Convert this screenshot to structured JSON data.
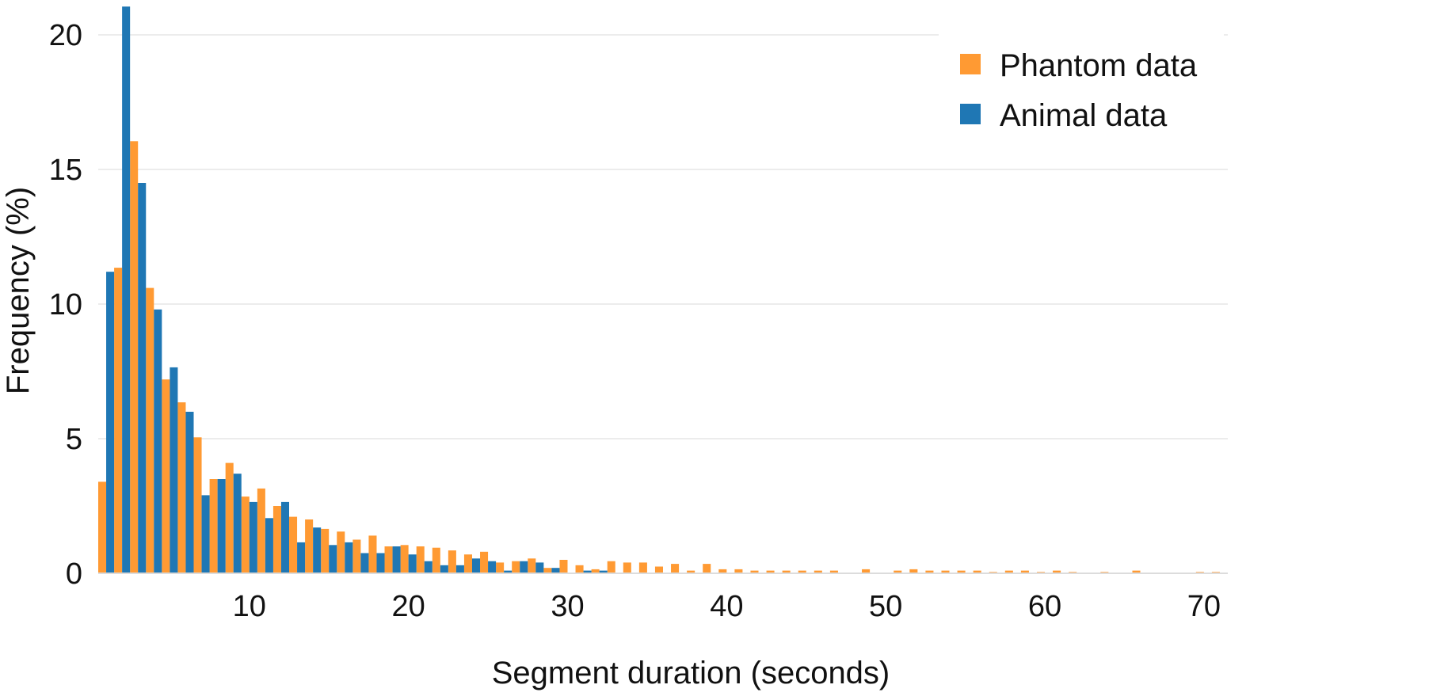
{
  "chart_data": {
    "type": "bar",
    "title": "",
    "xlabel": "Segment duration (seconds)",
    "ylabel": "Frequency (%)",
    "xlim": [
      0.5,
      71.5
    ],
    "ylim": [
      0,
      21
    ],
    "xticks": [
      10,
      20,
      30,
      40,
      50,
      60,
      70
    ],
    "yticks": [
      0,
      5,
      10,
      15,
      20
    ],
    "grid": "horizontal",
    "legend_position": "top-right",
    "colors": {
      "Phantom data": "#ff9a33",
      "Animal data": "#1f77b4",
      "grid": "#e6e6e6"
    },
    "x": [
      1,
      2,
      3,
      4,
      5,
      6,
      7,
      8,
      9,
      10,
      11,
      12,
      13,
      14,
      15,
      16,
      17,
      18,
      19,
      20,
      21,
      22,
      23,
      24,
      25,
      26,
      27,
      28,
      29,
      30,
      31,
      32,
      33,
      34,
      35,
      36,
      37,
      38,
      39,
      40,
      41,
      42,
      43,
      44,
      45,
      46,
      47,
      48,
      49,
      50,
      51,
      52,
      53,
      54,
      55,
      56,
      57,
      58,
      59,
      60,
      61,
      62,
      63,
      64,
      65,
      66,
      67,
      68,
      69,
      70,
      71
    ],
    "series": [
      {
        "name": "Phantom data",
        "values": [
          3.4,
          11.35,
          16.05,
          10.6,
          7.2,
          6.35,
          5.05,
          3.5,
          4.1,
          2.85,
          3.15,
          2.5,
          2.1,
          2.0,
          1.65,
          1.55,
          1.25,
          1.4,
          1.0,
          1.05,
          1.0,
          0.95,
          0.85,
          0.7,
          0.8,
          0.4,
          0.45,
          0.55,
          0.2,
          0.5,
          0.3,
          0.15,
          0.45,
          0.4,
          0.4,
          0.25,
          0.35,
          0.1,
          0.35,
          0.15,
          0.15,
          0.1,
          0.1,
          0.1,
          0.1,
          0.1,
          0.1,
          0.0,
          0.15,
          0.0,
          0.1,
          0.15,
          0.1,
          0.1,
          0.1,
          0.1,
          0.05,
          0.1,
          0.1,
          0.05,
          0.1,
          0.05,
          0.0,
          0.05,
          0.0,
          0.1,
          0.0,
          0.0,
          0.0,
          0.05,
          0.05
        ]
      },
      {
        "name": "Animal data",
        "values": [
          11.2,
          21.05,
          14.5,
          9.8,
          7.65,
          6.0,
          2.9,
          3.5,
          3.7,
          2.65,
          2.05,
          2.65,
          1.15,
          1.7,
          1.05,
          1.15,
          0.75,
          0.75,
          1.0,
          0.7,
          0.45,
          0.3,
          0.3,
          0.55,
          0.45,
          0.1,
          0.45,
          0.4,
          0.2,
          0.0,
          0.1,
          0.1,
          0,
          0,
          0,
          0,
          0,
          0,
          0,
          0,
          0,
          0,
          0,
          0,
          0,
          0,
          0,
          0,
          0,
          0,
          0,
          0,
          0,
          0,
          0,
          0,
          0,
          0,
          0,
          0,
          0,
          0,
          0,
          0,
          0,
          0,
          0,
          0,
          0,
          0,
          0
        ]
      }
    ]
  }
}
